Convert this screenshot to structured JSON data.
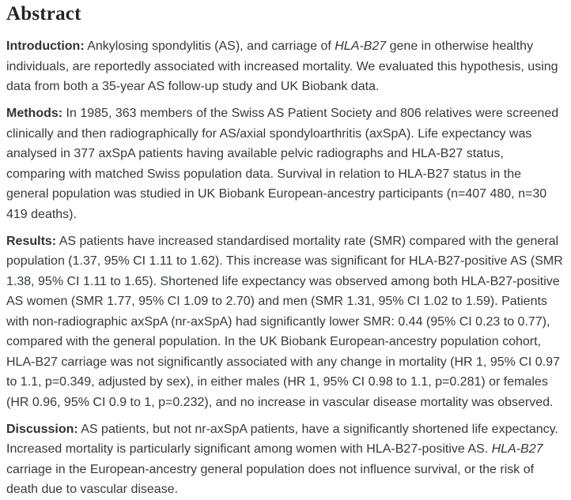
{
  "colors": {
    "background": "#ffffff",
    "heading_text": "#1f2428",
    "body_text": "#333a40"
  },
  "abstract": {
    "heading": "Abstract",
    "paragraphs": [
      {
        "name": "introduction",
        "segments": [
          {
            "style": "bold",
            "text": "Introduction:"
          },
          {
            "style": "normal",
            "text": " Ankylosing spondylitis (AS), and carriage of "
          },
          {
            "style": "italic",
            "text": "HLA-B27"
          },
          {
            "style": "normal",
            "text": " gene in otherwise healthy individuals, are reportedly associated with increased mortality. We evaluated this hypothesis, using data from both a 35-year AS follow-up study and UK Biobank data."
          }
        ]
      },
      {
        "name": "methods",
        "segments": [
          {
            "style": "bold",
            "text": "Methods:"
          },
          {
            "style": "normal",
            "text": " In 1985, 363 members of the Swiss AS Patient Society and 806 relatives were screened clinically and then radiographically for AS/axial spondyloarthritis (axSpA). Life expectancy was analysed in 377 axSpA patients having available pelvic radiographs and HLA-B27 status, comparing with matched Swiss population data. Survival in relation to HLA-B27 status in the general population was studied in UK Biobank European-ancestry participants (n=407 480, n=30 419 deaths)."
          }
        ]
      },
      {
        "name": "results",
        "segments": [
          {
            "style": "bold",
            "text": "Results:"
          },
          {
            "style": "normal",
            "text": " AS patients have increased standardised mortality rate (SMR) compared with the general population (1.37, 95% CI 1.11 to 1.62). This increase was significant for HLA-B27-positive AS (SMR 1.38, 95% CI 1.11 to 1.65). Shortened life expectancy was observed among both HLA-B27-positive AS women (SMR 1.77, 95% CI 1.09 to 2.70) and men (SMR 1.31, 95% CI 1.02 to 1.59). Patients with non-radiographic axSpA (nr-axSpA) had significantly lower SMR: 0.44 (95% CI 0.23 to 0.77), compared with the general population. In the UK Biobank European-ancestry population cohort, HLA-B27 carriage was not significantly associated with any change in mortality (HR 1, 95% CI 0.97 to 1.1, p=0.349, adjusted by sex), in either males (HR 1, 95% CI 0.98 to 1.1, p=0.281) or females (HR 0.96, 95% CI 0.9 to 1, p=0.232), and no increase in vascular disease mortality was observed."
          }
        ]
      },
      {
        "name": "discussion",
        "segments": [
          {
            "style": "bold",
            "text": "Discussion:"
          },
          {
            "style": "normal",
            "text": " AS patients, but not nr-axSpA patients, have a significantly shortened life expectancy. Increased mortality is particularly significant among women with HLA-B27-positive AS. "
          },
          {
            "style": "italic",
            "text": "HLA-B27"
          },
          {
            "style": "normal",
            "text": " carriage in the European-ancestry general population does not influence survival, or the risk of death due to vascular disease."
          }
        ]
      }
    ]
  }
}
